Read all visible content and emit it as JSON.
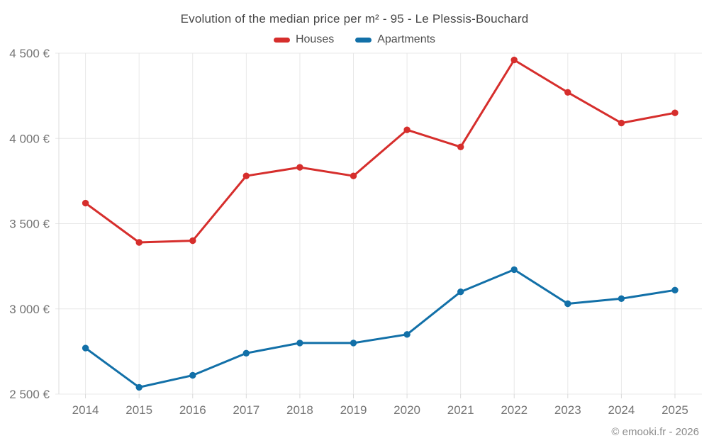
{
  "footer": "© emooki.fr - 2026",
  "colors": {
    "houses": "#d62e2c",
    "apartments": "#1270a8",
    "grid": "#e8e8e8",
    "axis_line": "#dcdcdc",
    "tick": "#d9d9d9",
    "axis_text": "#757575",
    "title_text": "#474747"
  },
  "chart_data": {
    "type": "line",
    "title": "Evolution of the median price per m² - 95 - Le Plessis-Bouchard",
    "xlabel": "",
    "ylabel": "",
    "x": [
      2014,
      2015,
      2016,
      2017,
      2018,
      2019,
      2020,
      2021,
      2022,
      2023,
      2024,
      2025
    ],
    "series": [
      {
        "name": "Houses",
        "color": "#d62e2c",
        "values": [
          3620,
          3390,
          3400,
          3780,
          3830,
          3780,
          4050,
          3950,
          4460,
          4270,
          4090,
          4150
        ]
      },
      {
        "name": "Apartments",
        "color": "#1270a8",
        "values": [
          2770,
          2540,
          2610,
          2740,
          2800,
          2800,
          2850,
          3100,
          3230,
          3030,
          3060,
          3110
        ]
      }
    ],
    "ylim": [
      2500,
      4500
    ],
    "yticks": [
      2500,
      3000,
      3500,
      4000,
      4500
    ],
    "ytick_suffix": " €",
    "grid": true,
    "legend_position": "top",
    "marker": "circle"
  }
}
